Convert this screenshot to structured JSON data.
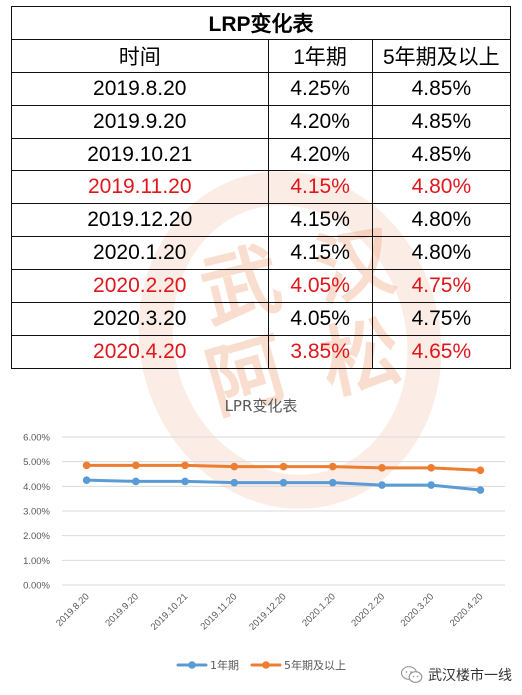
{
  "table": {
    "title": "LRP变化表",
    "headers": [
      "时间",
      "1年期",
      "5年期及以上"
    ],
    "rows": [
      {
        "date": "2019.8.20",
        "one_year": "4.25%",
        "five_year": "4.85%",
        "highlight": false
      },
      {
        "date": "2019.9.20",
        "one_year": "4.20%",
        "five_year": "4.85%",
        "highlight": false
      },
      {
        "date": "2019.10.21",
        "one_year": "4.20%",
        "five_year": "4.85%",
        "highlight": false
      },
      {
        "date": "2019.11.20",
        "one_year": "4.15%",
        "five_year": "4.80%",
        "highlight": true
      },
      {
        "date": "2019.12.20",
        "one_year": "4.15%",
        "five_year": "4.80%",
        "highlight": false
      },
      {
        "date": "2020.1.20",
        "one_year": "4.15%",
        "five_year": "4.80%",
        "highlight": false
      },
      {
        "date": "2020.2.20",
        "one_year": "4.05%",
        "five_year": "4.75%",
        "highlight": true
      },
      {
        "date": "2020.3.20",
        "one_year": "4.05%",
        "five_year": "4.75%",
        "highlight": false
      },
      {
        "date": "2020.4.20",
        "one_year": "3.85%",
        "five_year": "4.65%",
        "highlight": true
      }
    ]
  },
  "chart_data": {
    "type": "line",
    "title": "LPR变化表",
    "categories": [
      "2019.8.20",
      "2019.9.20",
      "2019.10.21",
      "2019.11.20",
      "2019.12.20",
      "2020.1.20",
      "2020.2.20",
      "2020.3.20",
      "2020.4.20"
    ],
    "series": [
      {
        "name": "1年期",
        "values": [
          4.25,
          4.2,
          4.2,
          4.15,
          4.15,
          4.15,
          4.05,
          4.05,
          3.85
        ],
        "color": "#5b9bd5"
      },
      {
        "name": "5年期及以上",
        "values": [
          4.85,
          4.85,
          4.85,
          4.8,
          4.8,
          4.8,
          4.75,
          4.75,
          4.65
        ],
        "color": "#ed7d31"
      }
    ],
    "ylim": [
      0,
      6
    ],
    "yticks": [
      "0.00%",
      "1.00%",
      "2.00%",
      "3.00%",
      "4.00%",
      "5.00%",
      "6.00%"
    ],
    "grid": true,
    "legend_position": "bottom"
  },
  "watermark": {
    "chars": [
      "武",
      "汉",
      "阿",
      "松"
    ],
    "color": "#f0af8c"
  },
  "brand": {
    "text": "武汉楼市一线",
    "icon": "wechat-icon"
  },
  "colors": {
    "highlight": "#e0161c",
    "table_text": "#000000"
  }
}
